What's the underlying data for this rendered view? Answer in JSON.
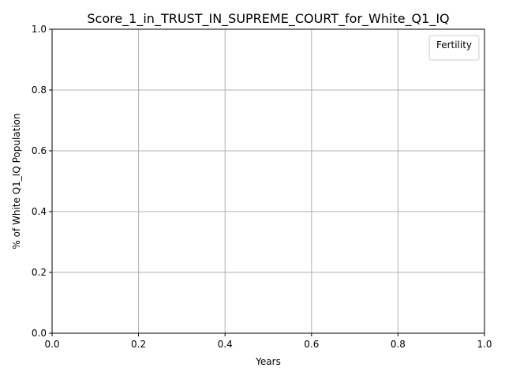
{
  "chart_data": {
    "type": "line",
    "title": "Score_1_in_TRUST_IN_SUPREME_COURT_for_White_Q1_IQ",
    "xlabel": "Years",
    "ylabel": "% of White Q1_IQ Population",
    "xlim": [
      0.0,
      1.0
    ],
    "ylim": [
      0.0,
      1.0
    ],
    "x_ticks": [
      "0.0",
      "0.2",
      "0.4",
      "0.6",
      "0.8",
      "1.0"
    ],
    "y_ticks": [
      "0.0",
      "0.2",
      "0.4",
      "0.6",
      "0.8",
      "1.0"
    ],
    "grid": true,
    "legend": {
      "title": "Fertility",
      "position": "top-right",
      "entries": []
    },
    "series": []
  }
}
